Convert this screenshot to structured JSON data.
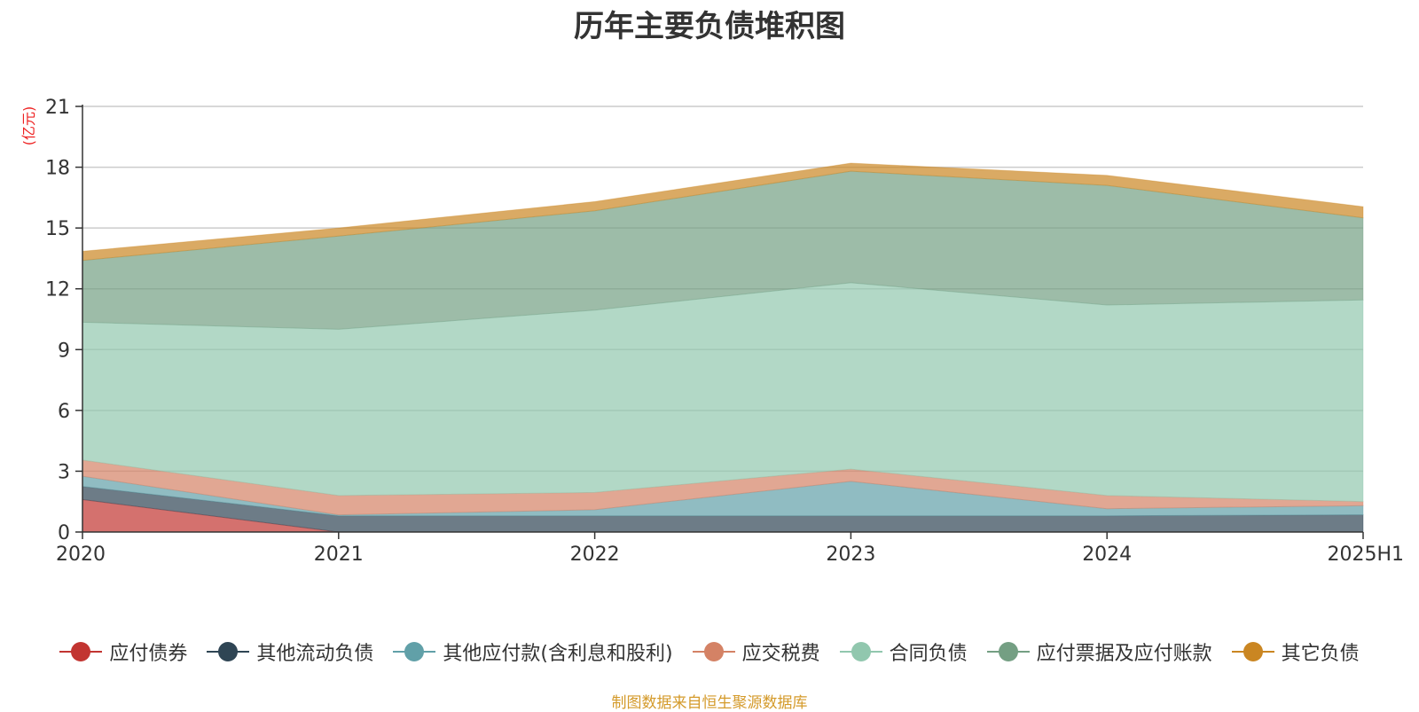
{
  "chart_data": {
    "type": "area",
    "stacked": true,
    "title": "历年主要负债堆积图",
    "unit": "(亿元)",
    "categories": [
      "2020",
      "2021",
      "2022",
      "2023",
      "2024",
      "2025H1"
    ],
    "yticks": [
      "0",
      "3",
      "6",
      "9",
      "12",
      "15",
      "18",
      "21"
    ],
    "ylim": [
      0,
      21
    ],
    "grid": true,
    "legend_position": "bottom",
    "series": [
      {
        "name": "应付债券",
        "color": "#c23531",
        "values": [
          1.6,
          0.0,
          0.0,
          0.0,
          0.0,
          0.0
        ]
      },
      {
        "name": "其他流动负债",
        "color": "#2f4554",
        "values": [
          0.65,
          0.8,
          0.8,
          0.8,
          0.8,
          0.85
        ]
      },
      {
        "name": "其他应付款(含利息和股利)",
        "color": "#61a0a8",
        "values": [
          0.5,
          0.05,
          0.3,
          1.7,
          0.35,
          0.45
        ]
      },
      {
        "name": "应交税费",
        "color": "#d48265",
        "values": [
          0.8,
          0.95,
          0.85,
          0.6,
          0.65,
          0.2
        ]
      },
      {
        "name": "合同负债",
        "color": "#91c7ae",
        "values": [
          6.8,
          8.2,
          9.0,
          9.2,
          9.4,
          9.95
        ]
      },
      {
        "name": "应付票据及应付账款",
        "color": "#749f83",
        "values": [
          3.05,
          4.6,
          4.9,
          5.5,
          5.9,
          4.05
        ]
      },
      {
        "name": "其它负债",
        "color": "#ca8622",
        "values": [
          0.45,
          0.4,
          0.45,
          0.4,
          0.5,
          0.55
        ]
      }
    ]
  },
  "source_note": "制图数据来自恒生聚源数据库"
}
